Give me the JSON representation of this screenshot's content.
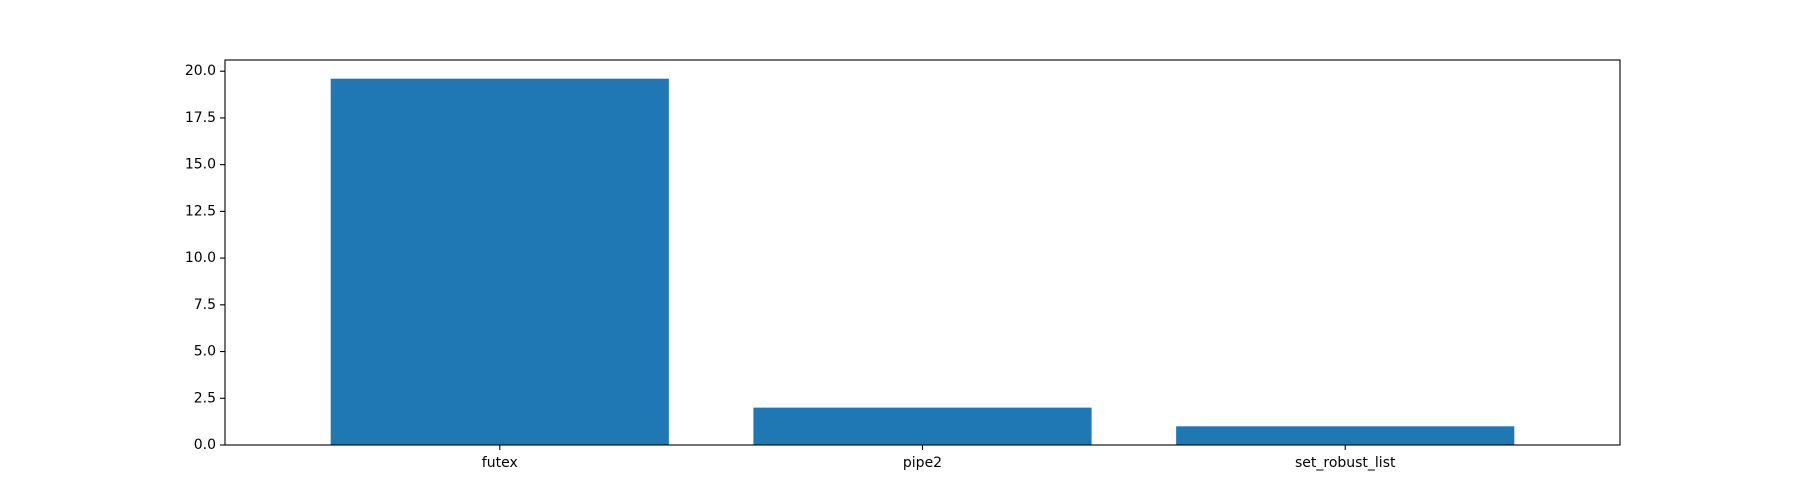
{
  "chart_data": {
    "type": "bar",
    "categories": [
      "futex",
      "pipe2",
      "set_robust_list"
    ],
    "values": [
      19.6,
      2.0,
      1.0
    ],
    "title": "",
    "xlabel": "",
    "ylabel": "",
    "ylim": [
      0,
      20.6
    ],
    "yticks": [
      0.0,
      2.5,
      5.0,
      7.5,
      10.0,
      12.5,
      15.0,
      17.5,
      20.0
    ],
    "ytick_labels": [
      "0.0",
      "2.5",
      "5.0",
      "7.5",
      "10.0",
      "12.5",
      "15.0",
      "17.5",
      "20.0"
    ],
    "grid": false,
    "legend": "none",
    "bar_color": "#1f77b4"
  }
}
